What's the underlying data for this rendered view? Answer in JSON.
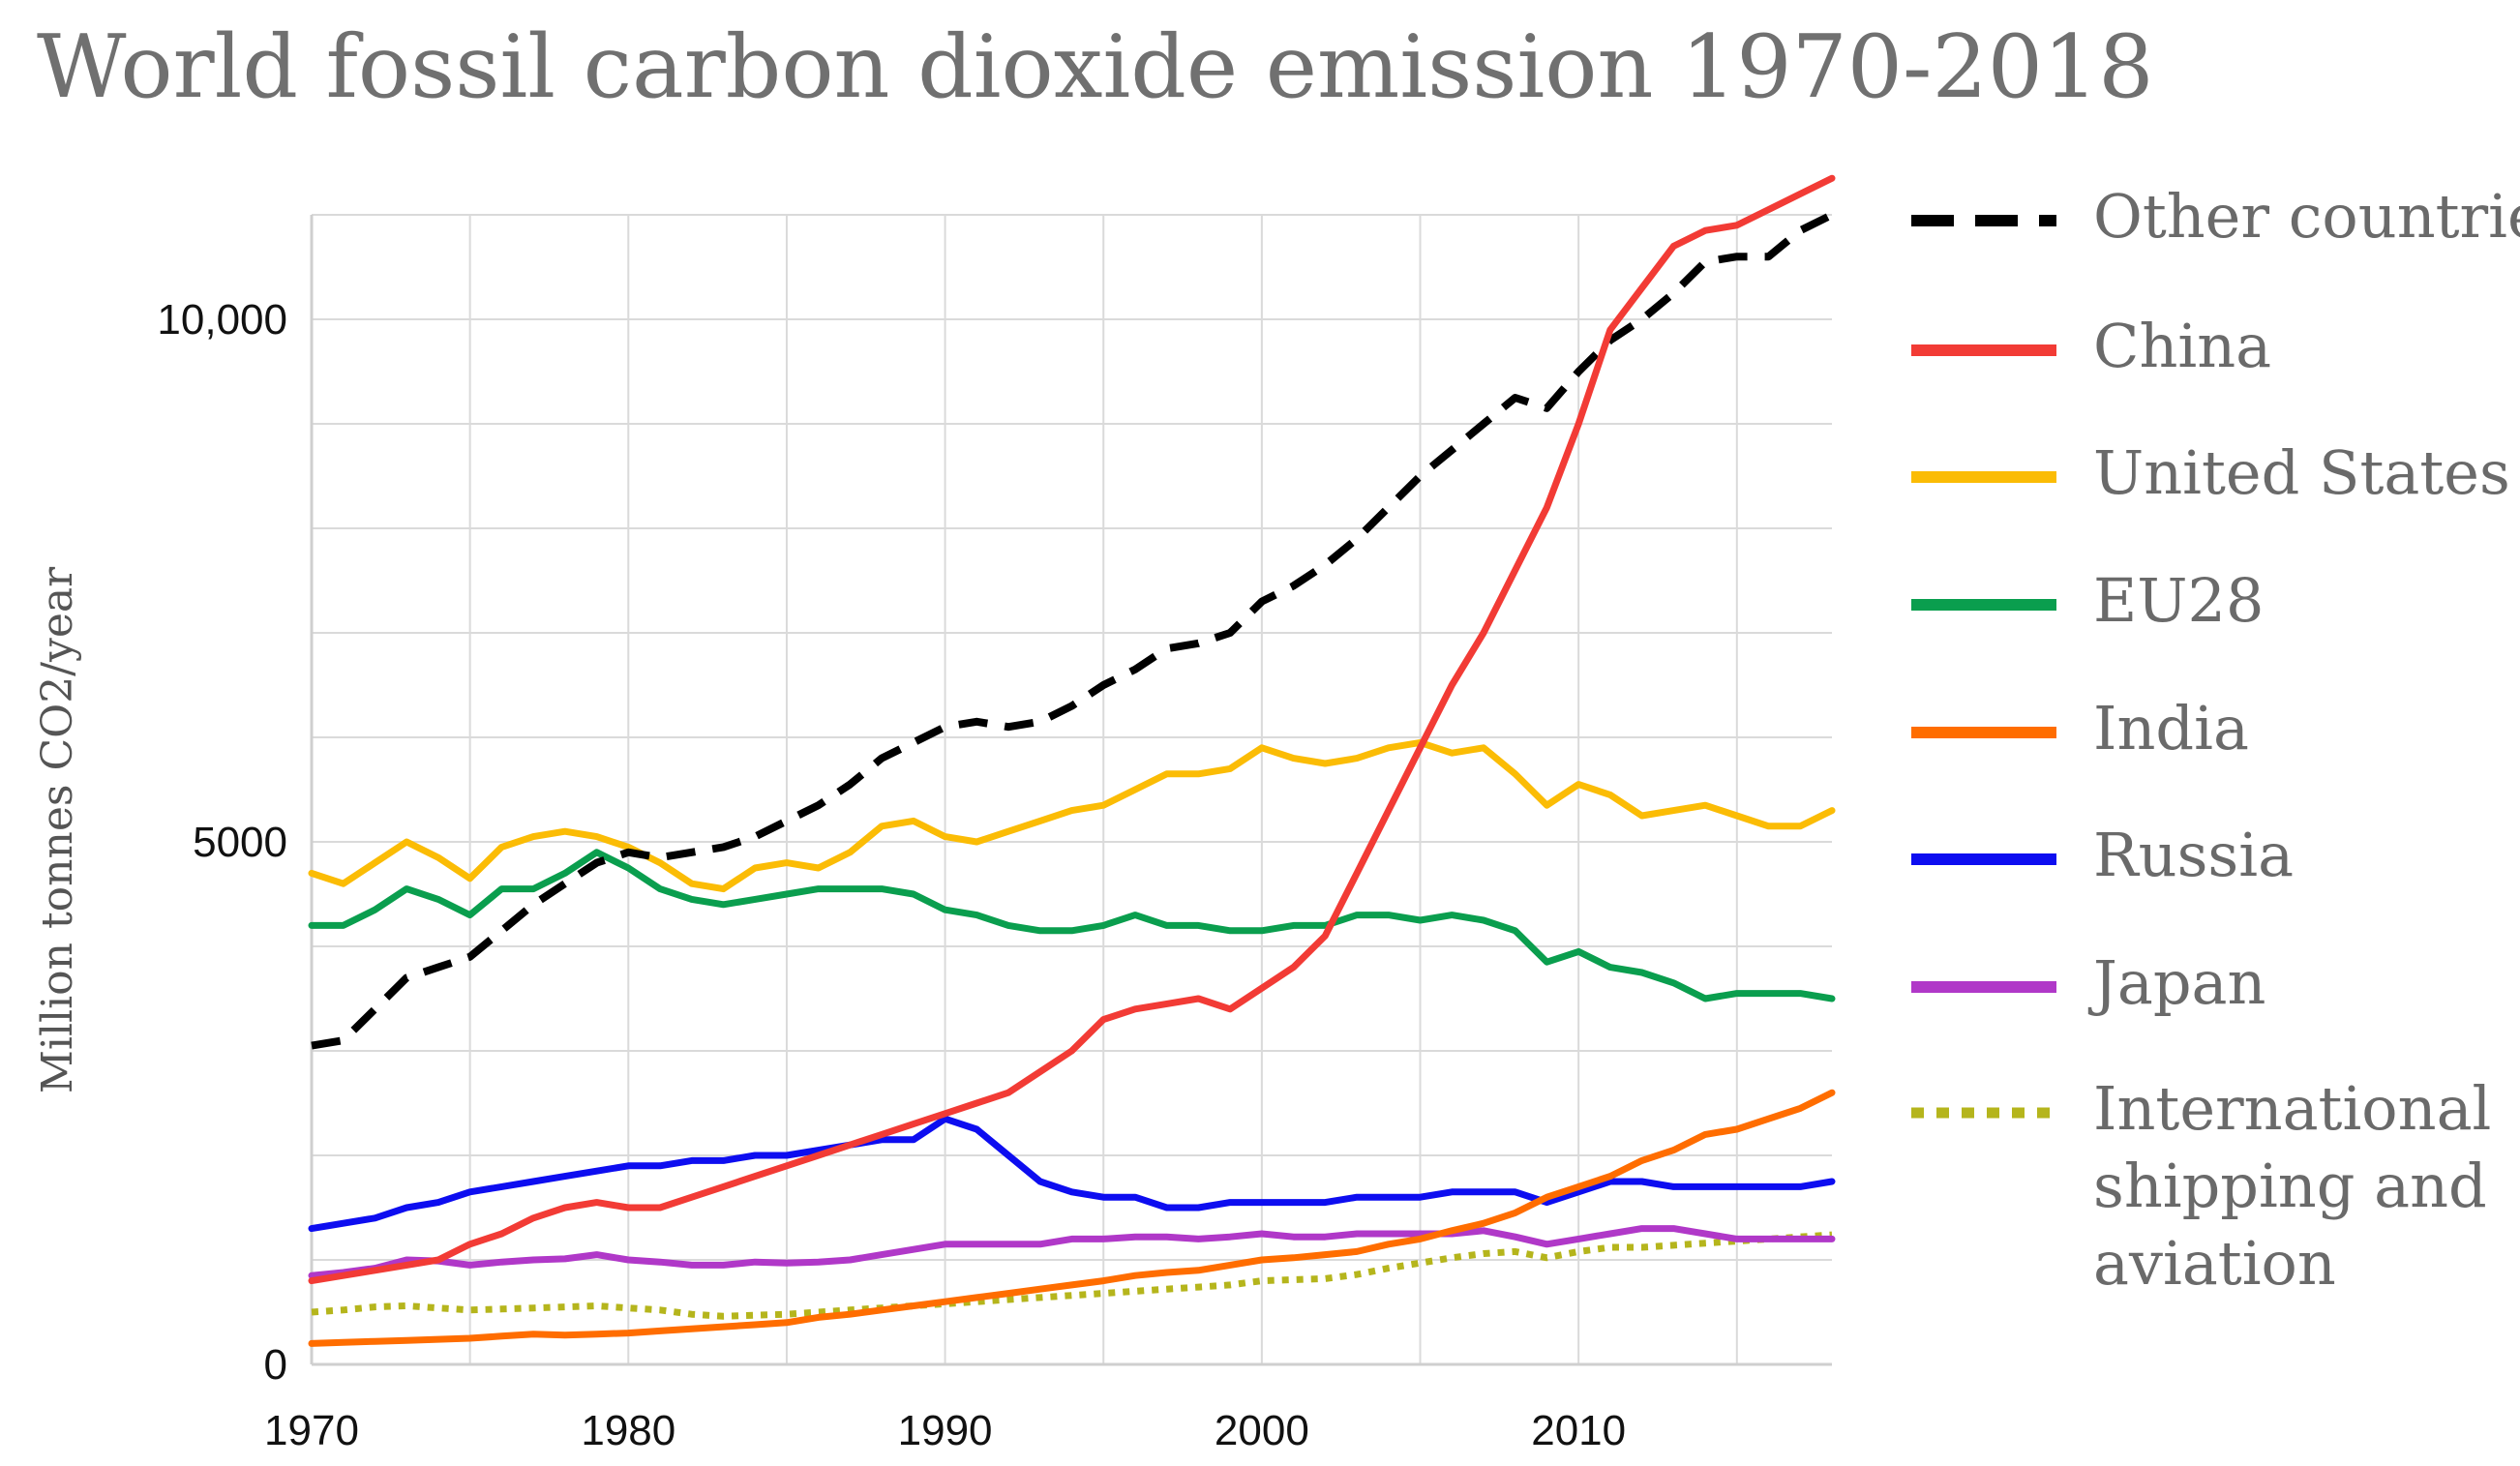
{
  "chart_data": {
    "type": "line",
    "title": "World fossil carbon dioxide emission 1970-2018",
    "xlabel": "",
    "ylabel": "Million tonnes CO2/year",
    "xlim": [
      1970,
      2018
    ],
    "ylim": [
      0,
      11000
    ],
    "grid": true,
    "legend_position": "right",
    "x_ticks": [
      {
        "value": 1970,
        "label": "1970"
      },
      {
        "value": 1980,
        "label": "1980"
      },
      {
        "value": 1990,
        "label": "1990"
      },
      {
        "value": 2000,
        "label": "2000"
      },
      {
        "value": 2010,
        "label": "2010"
      }
    ],
    "y_ticks": [
      {
        "value": 0,
        "label": "0"
      },
      {
        "value": 5000,
        "label": "5000"
      },
      {
        "value": 10000,
        "label": "10,000"
      }
    ],
    "x": [
      1970,
      1971,
      1972,
      1973,
      1974,
      1975,
      1976,
      1977,
      1978,
      1979,
      1980,
      1981,
      1982,
      1983,
      1984,
      1985,
      1986,
      1987,
      1988,
      1989,
      1990,
      1991,
      1992,
      1993,
      1994,
      1995,
      1996,
      1997,
      1998,
      1999,
      2000,
      2001,
      2002,
      2003,
      2004,
      2005,
      2006,
      2007,
      2008,
      2009,
      2010,
      2011,
      2012,
      2013,
      2014,
      2015,
      2016,
      2017,
      2018
    ],
    "series": [
      {
        "name": "Other countries",
        "color": "#000000",
        "dash": "dashed",
        "values": [
          3050,
          3100,
          3400,
          3700,
          3800,
          3900,
          4150,
          4400,
          4600,
          4800,
          4900,
          4850,
          4900,
          4950,
          5050,
          5200,
          5350,
          5550,
          5800,
          5950,
          6100,
          6150,
          6100,
          6150,
          6300,
          6500,
          6650,
          6850,
          6900,
          7000,
          7300,
          7450,
          7650,
          7900,
          8200,
          8500,
          8750,
          9000,
          9250,
          9150,
          9500,
          9800,
          10000,
          10250,
          10550,
          10600,
          10600,
          10850,
          11000
        ]
      },
      {
        "name": "China",
        "color": "#f23b35",
        "dash": "solid",
        "values": [
          800,
          850,
          900,
          950,
          1000,
          1150,
          1250,
          1400,
          1500,
          1550,
          1500,
          1500,
          1600,
          1700,
          1800,
          1900,
          2000,
          2100,
          2200,
          2300,
          2400,
          2500,
          2600,
          2800,
          3000,
          3300,
          3400,
          3450,
          3500,
          3400,
          3600,
          3800,
          4100,
          4700,
          5300,
          5900,
          6500,
          7000,
          7600,
          8200,
          9000,
          9900,
          10300,
          10700,
          10850,
          10900,
          11050,
          11200,
          11350
        ]
      },
      {
        "name": "United States",
        "color": "#fbbc05",
        "dash": "solid",
        "values": [
          4700,
          4600,
          4800,
          5000,
          4850,
          4650,
          4950,
          5050,
          5100,
          5050,
          4950,
          4800,
          4600,
          4550,
          4750,
          4800,
          4750,
          4900,
          5150,
          5200,
          5050,
          5000,
          5100,
          5200,
          5300,
          5350,
          5500,
          5650,
          5650,
          5700,
          5900,
          5800,
          5750,
          5800,
          5900,
          5950,
          5850,
          5900,
          5650,
          5350,
          5550,
          5450,
          5250,
          5300,
          5350,
          5250,
          5150,
          5150,
          5300
        ]
      },
      {
        "name": "EU28",
        "color": "#0a9e4e",
        "dash": "solid",
        "values": [
          4200,
          4200,
          4350,
          4550,
          4450,
          4300,
          4550,
          4550,
          4700,
          4900,
          4750,
          4550,
          4450,
          4400,
          4450,
          4500,
          4550,
          4550,
          4550,
          4500,
          4350,
          4300,
          4200,
          4150,
          4150,
          4200,
          4300,
          4200,
          4200,
          4150,
          4150,
          4200,
          4200,
          4300,
          4300,
          4250,
          4300,
          4250,
          4150,
          3850,
          3950,
          3800,
          3750,
          3650,
          3500,
          3550,
          3550,
          3550,
          3500
        ]
      },
      {
        "name": "India",
        "color": "#ff6d00",
        "dash": "solid",
        "values": [
          200,
          210,
          220,
          230,
          240,
          250,
          270,
          290,
          280,
          290,
          300,
          320,
          340,
          360,
          380,
          400,
          450,
          480,
          520,
          560,
          600,
          640,
          680,
          720,
          760,
          800,
          850,
          880,
          900,
          950,
          1000,
          1020,
          1050,
          1080,
          1150,
          1200,
          1280,
          1350,
          1450,
          1600,
          1700,
          1800,
          1950,
          2050,
          2200,
          2250,
          2350,
          2450,
          2600
        ]
      },
      {
        "name": "Russia",
        "color": "#0d0df0",
        "dash": "solid",
        "values": [
          1300,
          1350,
          1400,
          1500,
          1550,
          1650,
          1700,
          1750,
          1800,
          1850,
          1900,
          1900,
          1950,
          1950,
          2000,
          2000,
          2050,
          2100,
          2150,
          2150,
          2350,
          2250,
          2000,
          1750,
          1650,
          1600,
          1600,
          1500,
          1500,
          1550,
          1550,
          1550,
          1550,
          1600,
          1600,
          1600,
          1650,
          1650,
          1650,
          1550,
          1650,
          1750,
          1750,
          1700,
          1700,
          1700,
          1700,
          1700,
          1750
        ]
      },
      {
        "name": "Japan",
        "color": "#b038c8",
        "dash": "solid",
        "values": [
          850,
          880,
          920,
          1000,
          990,
          950,
          980,
          1000,
          1010,
          1050,
          1000,
          980,
          950,
          950,
          980,
          970,
          980,
          1000,
          1050,
          1100,
          1150,
          1150,
          1150,
          1150,
          1200,
          1200,
          1220,
          1220,
          1200,
          1220,
          1250,
          1220,
          1220,
          1250,
          1250,
          1250,
          1250,
          1280,
          1220,
          1150,
          1200,
          1250,
          1300,
          1300,
          1250,
          1200,
          1200,
          1200,
          1200
        ]
      },
      {
        "name": "International shipping and aviation",
        "color": "#b5b51c",
        "dash": "dotted",
        "values": [
          500,
          520,
          550,
          560,
          540,
          520,
          530,
          540,
          550,
          560,
          540,
          520,
          480,
          460,
          470,
          480,
          500,
          520,
          540,
          560,
          580,
          600,
          620,
          640,
          660,
          680,
          700,
          720,
          740,
          760,
          800,
          810,
          820,
          860,
          920,
          970,
          1020,
          1060,
          1080,
          1020,
          1080,
          1120,
          1120,
          1140,
          1160,
          1180,
          1200,
          1220,
          1240
        ]
      }
    ],
    "legend_lines": [
      [
        "Other countries"
      ],
      [
        "China"
      ],
      [
        "United States"
      ],
      [
        "EU28"
      ],
      [
        "India"
      ],
      [
        "Russia"
      ],
      [
        "Japan"
      ],
      [
        "International",
        "shipping and",
        "aviation"
      ]
    ]
  }
}
